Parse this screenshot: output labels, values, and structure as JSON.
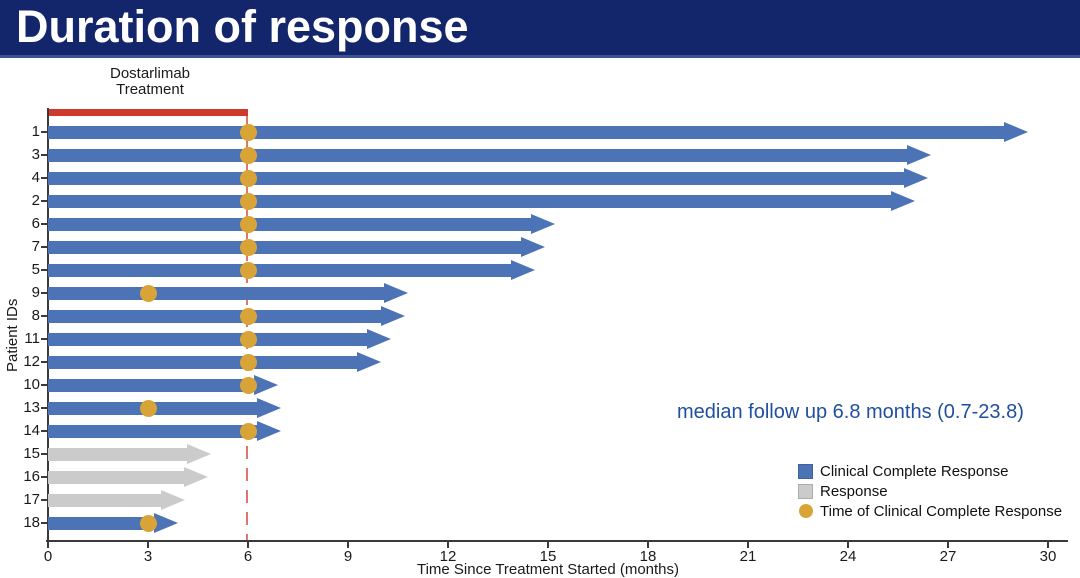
{
  "header": {
    "title": "Duration of response"
  },
  "colors": {
    "header_bg": "#13266B",
    "header_text": "#FFFFFF",
    "ccr_blue": "#4C73B5",
    "response_gray": "#CBCBCB",
    "dot_gold": "#D9A437",
    "treatment_red": "#CE3B2C",
    "dashed_red": "#E0766B",
    "annotation_blue": "#1F4F9E",
    "axis_dark": "#3A3A3A"
  },
  "chart_data": {
    "type": "swimmer-bar",
    "title": "Duration of response",
    "xlabel": "Time Since Treatment Started (months)",
    "ylabel": "Patient IDs",
    "xlim": [
      0,
      30
    ],
    "xticks": [
      0,
      3,
      6,
      9,
      12,
      15,
      18,
      21,
      24,
      27,
      30
    ],
    "grid": false,
    "treatment_label_lines": [
      "Dostarlimab",
      "Treatment"
    ],
    "treatment_span_months": [
      0,
      6
    ],
    "dashed_line_month": 6,
    "annotation": "median follow up 6.8 months (0.7-23.8)",
    "legend_position": "lower-right",
    "legend": [
      {
        "label": "Clinical Complete Response",
        "marker": "square",
        "color_key": "ccr_blue"
      },
      {
        "label": "Response",
        "marker": "square",
        "color_key": "response_gray"
      },
      {
        "label": "Time of Clinical Complete Response",
        "marker": "circle",
        "color_key": "dot_gold"
      }
    ],
    "patients": [
      {
        "id": "1",
        "months": 29.4,
        "type": "ccr",
        "dot_month": 6
      },
      {
        "id": "3",
        "months": 26.5,
        "type": "ccr",
        "dot_month": 6
      },
      {
        "id": "4",
        "months": 26.4,
        "type": "ccr",
        "dot_month": 6
      },
      {
        "id": "2",
        "months": 26.0,
        "type": "ccr",
        "dot_month": 6
      },
      {
        "id": "6",
        "months": 15.2,
        "type": "ccr",
        "dot_month": 6
      },
      {
        "id": "7",
        "months": 14.9,
        "type": "ccr",
        "dot_month": 6
      },
      {
        "id": "5",
        "months": 14.6,
        "type": "ccr",
        "dot_month": 6
      },
      {
        "id": "9",
        "months": 10.8,
        "type": "ccr",
        "dot_month": 3
      },
      {
        "id": "8",
        "months": 10.7,
        "type": "ccr",
        "dot_month": 6
      },
      {
        "id": "11",
        "months": 10.3,
        "type": "ccr",
        "dot_month": 6
      },
      {
        "id": "12",
        "months": 10.0,
        "type": "ccr",
        "dot_month": 6
      },
      {
        "id": "10",
        "months": 6.9,
        "type": "ccr",
        "dot_month": 6
      },
      {
        "id": "13",
        "months": 7.0,
        "type": "ccr",
        "dot_month": 3
      },
      {
        "id": "14",
        "months": 7.0,
        "type": "ccr",
        "dot_month": 6
      },
      {
        "id": "15",
        "months": 4.9,
        "type": "response",
        "dot_month": null
      },
      {
        "id": "16",
        "months": 4.8,
        "type": "response",
        "dot_month": null
      },
      {
        "id": "17",
        "months": 4.1,
        "type": "response",
        "dot_month": null
      },
      {
        "id": "18",
        "months": 3.9,
        "type": "ccr",
        "dot_month": 3
      }
    ]
  }
}
